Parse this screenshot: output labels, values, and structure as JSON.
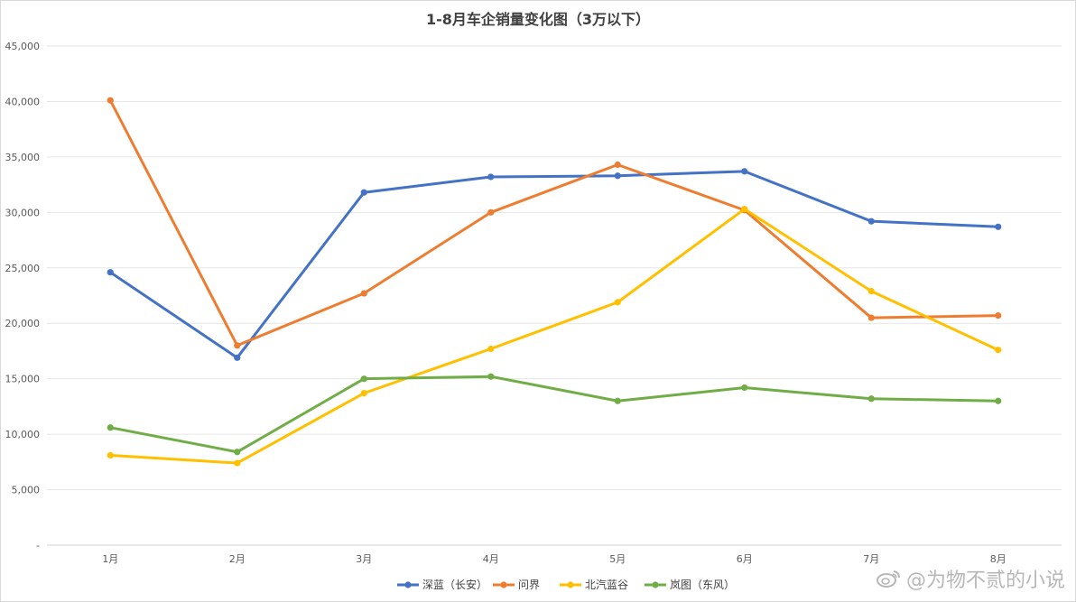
{
  "chart_data": {
    "type": "line",
    "title": "1-8月车企销量变化图（3万以下）",
    "categories": [
      "1月",
      "2月",
      "3月",
      "4月",
      "5月",
      "6月",
      "7月",
      "8月"
    ],
    "yticks": [
      "-",
      "5,000",
      "10,000",
      "15,000",
      "20,000",
      "25,000",
      "30,000",
      "35,000",
      "40,000",
      "45,000"
    ],
    "ylim": [
      0,
      45000
    ],
    "ystep": 5000,
    "grid": true,
    "legend": "bottom-center",
    "series": [
      {
        "name": "深蓝（长安）",
        "color": "#4472C4",
        "values": [
          24600,
          16900,
          31800,
          33200,
          33300,
          33700,
          29200,
          28700
        ]
      },
      {
        "name": "问界",
        "color": "#ED7D31",
        "values": [
          40100,
          18000,
          22700,
          30000,
          34300,
          30200,
          20500,
          20700
        ]
      },
      {
        "name": "北汽蓝谷",
        "color": "#FFC000",
        "values": [
          8100,
          7400,
          13700,
          17700,
          21900,
          30300,
          22900,
          17600
        ]
      },
      {
        "name": "岚图（东风）",
        "color": "#70AD47",
        "values": [
          10600,
          8400,
          15000,
          15200,
          13000,
          14200,
          13200,
          13000
        ]
      }
    ]
  },
  "watermark": {
    "icon": "weibo-icon",
    "text": "@为物不贰的小说"
  }
}
